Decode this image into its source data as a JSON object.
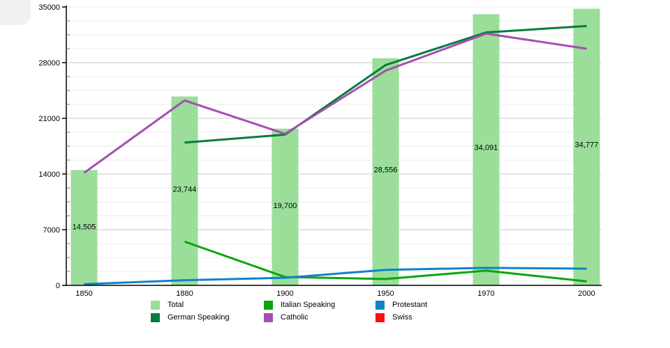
{
  "page": {
    "background": "#ffffff",
    "corner_artifact_color": "#f1f1f1"
  },
  "chart_data": {
    "type": "combo",
    "title": "",
    "xlabel": "",
    "ylabel": "",
    "categories": [
      "1850",
      "1880",
      "1900",
      "1950",
      "1970",
      "2000"
    ],
    "bar_series": {
      "name": "Total",
      "type": "bar",
      "color": "#9ADE9A",
      "values": [
        14505,
        23744,
        19700,
        28556,
        34091,
        34777
      ],
      "labels": [
        "14,505",
        "23,744",
        "19,700",
        "28,556",
        "34,091",
        "34,777"
      ]
    },
    "line_series": [
      {
        "name": "Italian Speaking",
        "type": "line",
        "color": "#0CA50C",
        "values": [
          null,
          5500,
          1050,
          800,
          1850,
          500
        ]
      },
      {
        "name": "Protestant",
        "type": "line",
        "color": "#1082C9",
        "values": [
          150,
          650,
          950,
          1950,
          2200,
          2100
        ]
      },
      {
        "name": "German Speaking",
        "type": "line",
        "color": "#067B3C",
        "values": [
          null,
          17950,
          18950,
          27700,
          31800,
          32600
        ]
      },
      {
        "name": "Catholic",
        "type": "line",
        "color": "#A44FB0",
        "values": [
          14150,
          23250,
          19050,
          27000,
          31650,
          29750
        ]
      },
      {
        "name": "Swiss",
        "type": "line",
        "color": "#FB0D0E",
        "values": [
          null,
          null,
          null,
          null,
          null,
          null
        ]
      }
    ],
    "y_axis": {
      "min": 0,
      "max": 35000,
      "major_step": 7000,
      "minor_step": 1750,
      "tick_labels": [
        "0",
        "7000",
        "14000",
        "21000",
        "28000",
        "35000"
      ]
    },
    "grid": "horizontal-only",
    "grid_minor_color": "#ebebeb",
    "grid_major_color": "#c9c9c9",
    "axis_color": "#000000",
    "legend_position": "bottom"
  },
  "legend": {
    "columns": [
      [
        {
          "label": "Total",
          "color": "#9ADE9A"
        },
        {
          "label": "German Speaking",
          "color": "#067B3C"
        }
      ],
      [
        {
          "label": "Italian Speaking",
          "color": "#0CA50C"
        },
        {
          "label": "Catholic",
          "color": "#A44FB0"
        }
      ],
      [
        {
          "label": "Protestant",
          "color": "#1082C9"
        },
        {
          "label": "Swiss",
          "color": "#FB0D0E"
        }
      ]
    ]
  }
}
